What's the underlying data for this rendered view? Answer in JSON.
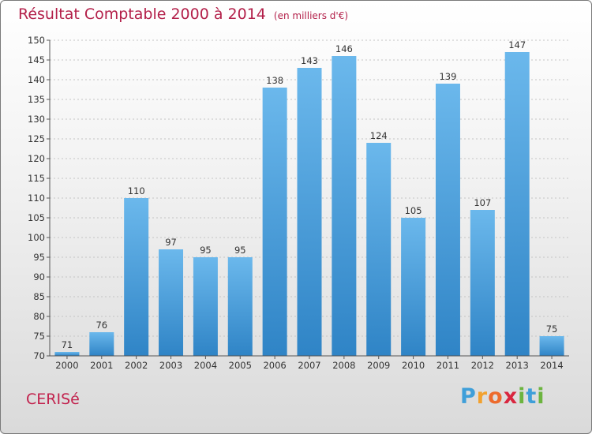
{
  "chart_data": {
    "type": "bar",
    "title": "Résultat Comptable 2000 à 2014",
    "unit": "(en milliers d'€)",
    "categories": [
      "2000",
      "2001",
      "2002",
      "2003",
      "2004",
      "2005",
      "2006",
      "2007",
      "2008",
      "2009",
      "2010",
      "2011",
      "2012",
      "2013",
      "2014"
    ],
    "values": [
      71,
      76,
      110,
      97,
      95,
      95,
      138,
      143,
      146,
      124,
      105,
      139,
      107,
      147,
      75
    ],
    "ylim": [
      70,
      150
    ],
    "yticks": [
      70,
      75,
      80,
      85,
      90,
      95,
      100,
      105,
      110,
      115,
      120,
      125,
      130,
      135,
      140,
      145,
      150
    ],
    "xlabel": "",
    "ylabel": "",
    "grid": true
  },
  "place_name": "CERISé",
  "logo": {
    "letters": [
      "P",
      "r",
      "o",
      "x",
      "i",
      "t",
      "i"
    ],
    "colors": [
      "#3f9fd9",
      "#f2a12e",
      "#ed6b2d",
      "#d9263f",
      "#6cb43f",
      "#3f9fd9",
      "#6cb43f"
    ]
  },
  "colors": {
    "bar_light": "#6bb8ec",
    "bar_dark": "#2f84c6",
    "title": "#b3204a",
    "axis_text": "#333333"
  }
}
